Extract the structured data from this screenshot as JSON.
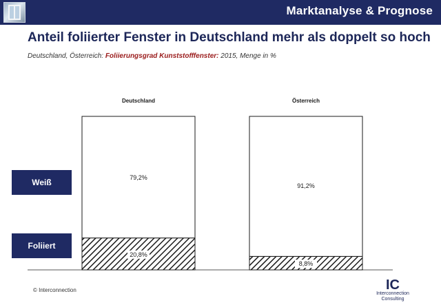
{
  "header": {
    "section_title": "Marktanalyse & Prognose"
  },
  "title": "Anteil foliierter Fenster in Deutschland mehr als doppelt so hoch",
  "subtitle": {
    "prefix": "Deutschland, Österreich: ",
    "highlight": "Foliierungsgrad Kunststofffenster:",
    "suffix": " 2015, Menge in %"
  },
  "colors": {
    "brand": "#1f2a63",
    "highlight": "#9a1b1b"
  },
  "chart_data": {
    "type": "bar",
    "stacked": true,
    "unit": "%",
    "categories": [
      "Deutschland",
      "Österreich"
    ],
    "series": [
      {
        "name": "Foliiert",
        "values": [
          20.8,
          8.8
        ],
        "labels": [
          "20,8%",
          "8,8%"
        ],
        "pattern": "hatched"
      },
      {
        "name": "Weiß",
        "values": [
          79.2,
          91.2
        ],
        "labels": [
          "79,2%",
          "91,2%"
        ],
        "pattern": "white"
      }
    ],
    "ylim": [
      0,
      100
    ]
  },
  "footer": {
    "copyright": "© Interconnection",
    "logo_mark": "IC",
    "logo_line1": "Interconnection",
    "logo_line2": "Consulting"
  }
}
